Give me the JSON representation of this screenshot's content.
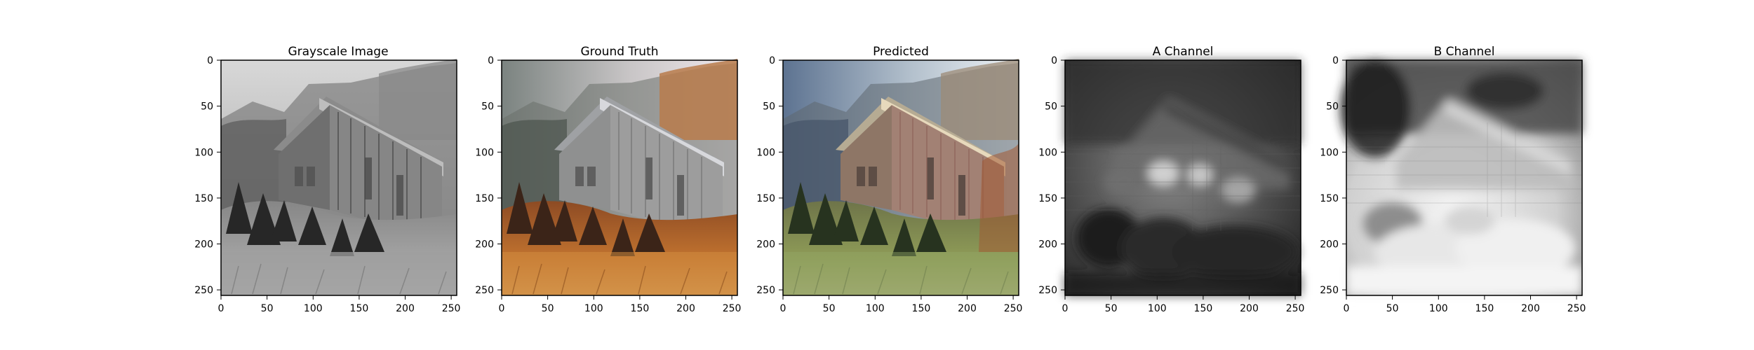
{
  "figure": {
    "panels": [
      {
        "title": "Grayscale Image",
        "image": "grayscale barn with trees and grass",
        "x_ticks": [
          "0",
          "50",
          "100",
          "150",
          "200",
          "250"
        ],
        "y_ticks": [
          "0",
          "50",
          "100",
          "150",
          "200",
          "250"
        ]
      },
      {
        "title": "Ground Truth",
        "image": "color barn with orange autumn grass",
        "x_ticks": [
          "0",
          "50",
          "100",
          "150",
          "200",
          "250"
        ],
        "y_ticks": [
          "0",
          "50",
          "100",
          "150",
          "200",
          "250"
        ]
      },
      {
        "title": "Predicted",
        "image": "colorized barn with green grass and blue sky",
        "x_ticks": [
          "0",
          "50",
          "100",
          "150",
          "200",
          "250"
        ],
        "y_ticks": [
          "0",
          "50",
          "100",
          "150",
          "200",
          "250"
        ]
      },
      {
        "title": "A Channel",
        "image": "dark gray blurred barn channel map",
        "x_ticks": [
          "0",
          "50",
          "100",
          "150",
          "200",
          "250"
        ],
        "y_ticks": [
          "0",
          "50",
          "100",
          "150",
          "200",
          "250"
        ]
      },
      {
        "title": "B Channel",
        "image": "light gray blurred barn channel map",
        "x_ticks": [
          "0",
          "50",
          "100",
          "150",
          "200",
          "250"
        ],
        "y_ticks": [
          "0",
          "50",
          "100",
          "150",
          "200",
          "250"
        ]
      }
    ]
  },
  "colors": {
    "frame": "#000000",
    "background": "#ffffff"
  }
}
